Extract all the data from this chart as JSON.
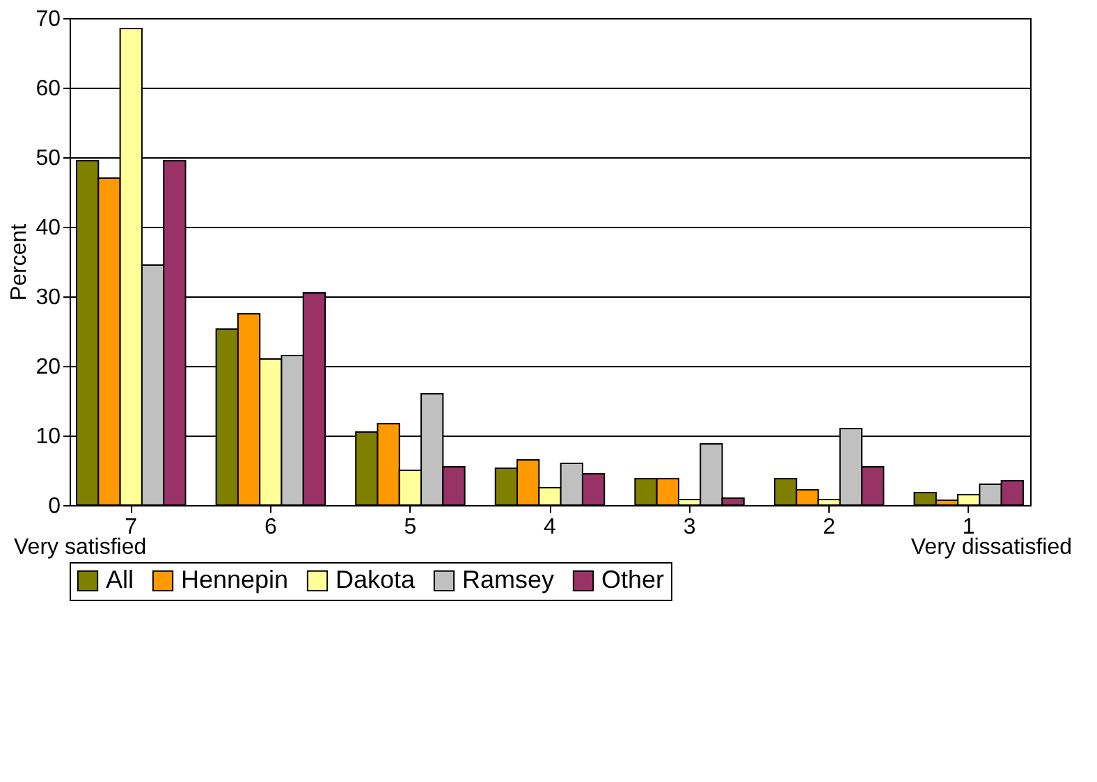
{
  "chart_data": {
    "type": "bar",
    "ylabel": "Percent",
    "categories": [
      "7",
      "6",
      "5",
      "4",
      "3",
      "2",
      "1"
    ],
    "series": [
      {
        "name": "All",
        "color": "#808000",
        "values": [
          49.5,
          25.3,
          10.5,
          5.3,
          3.8,
          3.8,
          1.8
        ]
      },
      {
        "name": "Hennepin",
        "color": "#ff9900",
        "values": [
          47,
          27.5,
          11.7,
          6.5,
          3.8,
          2.2,
          0.7
        ]
      },
      {
        "name": "Dakota",
        "color": "#ffff99",
        "values": [
          68.5,
          21,
          5,
          2.5,
          0.8,
          0.8,
          1.5
        ]
      },
      {
        "name": "Ramsey",
        "color": "#c0c0c0",
        "values": [
          34.5,
          21.5,
          16,
          6,
          8.8,
          11,
          3
        ]
      },
      {
        "name": "Other",
        "color": "#993366",
        "values": [
          49.5,
          30.5,
          5.5,
          4.5,
          1,
          5.5,
          3.5
        ]
      }
    ],
    "ylim": [
      0,
      70
    ],
    "yticks": [
      0,
      10,
      20,
      30,
      40,
      50,
      60,
      70
    ],
    "grid": "y",
    "legend": "bottom",
    "annotations": [
      "Very satisfied",
      "Very dissatisfied"
    ]
  }
}
